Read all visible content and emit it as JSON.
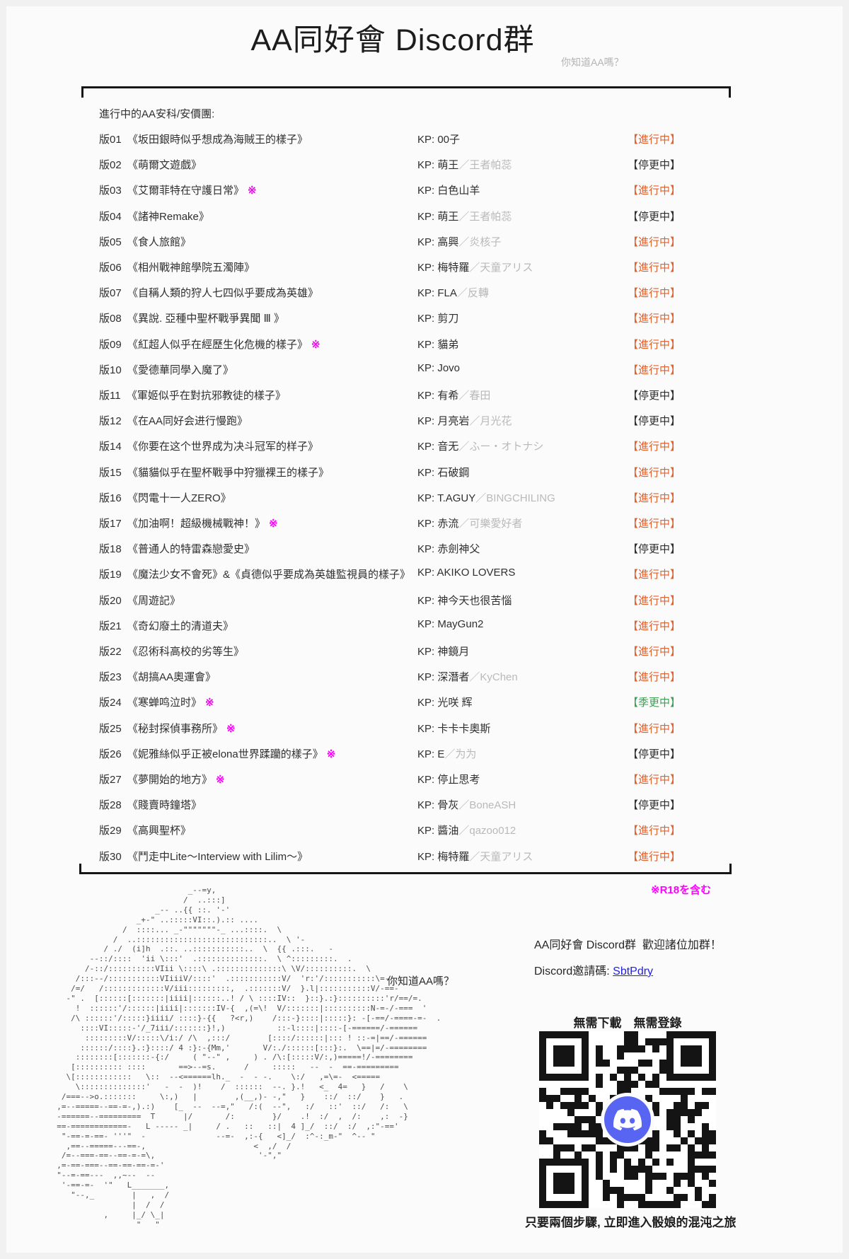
{
  "header": {
    "title": "AA同好會 Discord群",
    "subtitle": "你知道AA嗎？"
  },
  "list": {
    "heading": "進行中的AA安科/安價團:",
    "kp_prefix": "KP: ",
    "separator": "／",
    "r18_mark": "※",
    "bracket_open": "【",
    "bracket_close": "】",
    "status_colors": {
      "進行中": "#e2612c",
      "停更中": "#2e2e2e",
      "季更中": "#3ba052"
    },
    "rows": [
      {
        "no": "版01",
        "title": "《坂田銀時似乎想成為海賊王的樣子》",
        "r18": false,
        "kp": "00子",
        "kp2": "",
        "status": "進行中"
      },
      {
        "no": "版02",
        "title": "《萌爾文遊戲》",
        "r18": false,
        "kp": "萌王",
        "kp2": "王者帕蕊",
        "status": "停更中"
      },
      {
        "no": "版03",
        "title": "《艾爾菲特在守護日常》",
        "r18": true,
        "kp": "白色山羊",
        "kp2": "",
        "status": "進行中"
      },
      {
        "no": "版04",
        "title": "《諸神Remake》",
        "r18": false,
        "kp": "萌王",
        "kp2": "王者帕蕊",
        "status": "停更中"
      },
      {
        "no": "版05",
        "title": "《食人旅館》",
        "r18": false,
        "kp": "高興",
        "kp2": "炎核子",
        "status": "進行中"
      },
      {
        "no": "版06",
        "title": "《相州戰神館學院五濁陣》",
        "r18": false,
        "kp": "梅特羅",
        "kp2": "天童アリス",
        "status": "進行中"
      },
      {
        "no": "版07",
        "title": "《自稱人類的狩人七四似乎要成為英雄》",
        "r18": false,
        "kp": "FLA",
        "kp2": "反轉",
        "status": "進行中"
      },
      {
        "no": "版08",
        "title": "《異說. 亞種中聖杯戰爭異聞 Ⅲ 》",
        "r18": false,
        "kp": "剪刀",
        "kp2": "",
        "status": "進行中"
      },
      {
        "no": "版09",
        "title": "《紅超人似乎在經歷生化危機的樣子》",
        "r18": true,
        "kp": "貓弟",
        "kp2": "",
        "status": "進行中"
      },
      {
        "no": "版10",
        "title": "《愛德華同學入魔了》",
        "r18": false,
        "kp": "Jovo",
        "kp2": "",
        "status": "進行中"
      },
      {
        "no": "版11",
        "title": "《軍姬似乎在對抗邪教徒的樣子》",
        "r18": false,
        "kp": "有希",
        "kp2": "春田",
        "status": "停更中"
      },
      {
        "no": "版12",
        "title": "《在AA同好会进行慢跑》",
        "r18": false,
        "kp": "月亮岩",
        "kp2": "月光花",
        "status": "停更中"
      },
      {
        "no": "版14",
        "title": "《你要在这个世界成为决斗冠军的样子》",
        "r18": false,
        "kp": "音无",
        "kp2": "ふー・オトナシ",
        "status": "進行中"
      },
      {
        "no": "版15",
        "title": "《貓貓似乎在聖杯戰爭中狩獵裸王的樣子》",
        "r18": false,
        "kp": "石破鋼",
        "kp2": "",
        "status": "進行中"
      },
      {
        "no": "版16",
        "title": "《閃電十一人ZERO》",
        "r18": false,
        "kp": "T.AGUY",
        "kp2": "BINGCHILING",
        "status": "進行中"
      },
      {
        "no": "版17",
        "title": "《加油啊！超級機械戰神！》",
        "r18": true,
        "kp": "赤流",
        "kp2": "可樂愛好者",
        "status": "進行中"
      },
      {
        "no": "版18",
        "title": "《普通人的特雷森戀愛史》",
        "r18": false,
        "kp": "赤劍神父",
        "kp2": "",
        "status": "停更中"
      },
      {
        "no": "版19",
        "title": "《魔法少女不會死》&《貞德似乎要成為英雄監視員的樣子》",
        "r18": false,
        "kp": "AKIKO LOVERS",
        "kp2": "",
        "status": "進行中"
      },
      {
        "no": "版20",
        "title": "《周遊記》",
        "r18": false,
        "kp": "神今天也很苦惱",
        "kp2": "",
        "status": "進行中"
      },
      {
        "no": "版21",
        "title": "《奇幻廢土的清道夫》",
        "r18": false,
        "kp": "MayGun2",
        "kp2": "",
        "status": "進行中"
      },
      {
        "no": "版22",
        "title": "《忍術科高校的劣等生》",
        "r18": false,
        "kp": "神鏡月",
        "kp2": "",
        "status": "進行中"
      },
      {
        "no": "版23",
        "title": "《胡搞AA奧運會》",
        "r18": false,
        "kp": "深潛者",
        "kp2": "KyChen",
        "status": "進行中"
      },
      {
        "no": "版24",
        "title": "《寒蝉鸣泣时》",
        "r18": true,
        "kp": "光咲 辉",
        "kp2": "",
        "status": "季更中"
      },
      {
        "no": "版25",
        "title": "《秘封探偵事務所》",
        "r18": true,
        "kp": "卡卡卡奧斯",
        "kp2": "",
        "status": "進行中"
      },
      {
        "no": "版26",
        "title": "《妮雅絲似乎正被elona世界蹂躪的樣子》",
        "r18": true,
        "kp": "E",
        "kp2": "为为",
        "status": "停更中"
      },
      {
        "no": "版27",
        "title": "《夢開始的地方》",
        "r18": true,
        "kp": "停止思考",
        "kp2": "",
        "status": "進行中"
      },
      {
        "no": "版28",
        "title": "《賤賣時鐘塔》",
        "r18": false,
        "kp": "骨灰",
        "kp2": "BoneASH",
        "status": "停更中"
      },
      {
        "no": "版29",
        "title": "《高興聖杯》",
        "r18": false,
        "kp": "醬油",
        "kp2": "qazoo012",
        "status": "進行中"
      },
      {
        "no": "版30",
        "title": "《鬥走中Lite～Interview with Lilim～》",
        "r18": false,
        "kp": "梅特羅",
        "kp2": "天童アリス",
        "status": "進行中"
      }
    ]
  },
  "footer": {
    "r18_note": "※R18を含む",
    "aa_caption": "你知道AA嗎？",
    "promo": "AA同好會 Discord群  歡迎諸位加群！",
    "invite_label": "Discord邀請碼: ",
    "invite_code": "SbtPdry",
    "qr_caption_top": "無需下載　無需登錄",
    "qr_caption_bottom": "只要兩個步驟, 立即進入骰娘的混沌之旅",
    "discord_color": "#5865F2"
  },
  "ascii_art": {
    "lines": [
      "                                      _--=y,",
      "                                     /  ..:::]",
      "                               _-- ..{{ ::. '-'",
      "                           _+-\" ..:::::VI::.).:: ....",
      "                        /  ::::... _-\"\"\"\"\"\"\"-_ ...::::.  \\",
      "                      /  ..::::::::::::::::::::::::::::..  \\ '-",
      "                    / ./  (i]h  .::. ..:::::::::::..  \\  {{ .:::.   -",
      "                 --::/::::  'ii \\:::'  .::::::::::::::.  \\ ^:::::::::.  .",
      "                /-::/::::::::::VIii \\::::\\ .::::::::::::::\\ \\V/::::::::::.  \\",
      "              /:::--/:::::::::::VIiiiV/::::'  .:::::::::::V/  'r:'/:::::::::::\\=-",
      "             /=/   /:::::::::::::V/iii:::::::::,  .:::::::V/  }.l|:::::::::::V/-==-",
      "            -\" .  [::::::[:::::::|iiii|::::::..! / \\ ::::IV::  }::}.:}::::::::::'r/==/=.",
      "              !  ::::::'/::::::|iiii|:::::::IV-{  ,(=\\!  V/:::::::|::::::::::N-=-/-===  '",
      "             /\\ ::::::'/:::::}iiii/ ::::}-{{   ?<r,)    /:::-}::::|:::::}: -[-==/-====-=-  .",
      "               ::::VI:::::-'/_7iii/:::::::}!,)           ::-l::::|::::-[-======/-======",
      "                :::::::::V/:::::\\/i:/ /\\  ,:::/        [::::/::::::|::: ! ::-=|==/-======",
      "               ::::::/::::}.:}::::/ 4 :}:-{Mm,'       V/:./::::::[:::}:.  \\==|=/-========",
      "              ::::::::[:::::::-{:/     ( \"--\" ,     ) . /\\:[:::::V/:,)=====!/-========",
      "             [:::::::::: ::::       ==>--=s.      /     :::::   --  -  ==-=========",
      "            \\[::::::::::::   \\::  --<======lh._  -  - -.    \\:/   ,=\\=-  <=====",
      "              \\::::::::::::::'   -  -  )!    /  ::::::  --. }.!   <_  4=   }   /    \\",
      "           /===-->o.:::::::     \\:,)   |        ,(__,)- -,\"   }    ::/  ::/    }   .",
      "          ,=--=====--==-=-,).:)    [_  --  --=,\"   /:(  --\",   :/   ::'  ::/   /:   \\",
      "          -======--=========  T      |/       /:        }/    .!  :/  ,  /:    ,:  -}",
      "          ==-============-   L ----- _|     / .   ::   ::|  4 ]_/  ::/  :/  ,:\"-=='",
      "           \"-==-=-==- '''\"  -               --=-  ,:-{   <]_/  :^-:_m-\"  ^-- \"",
      "            ,==--=====---==-,                       <  ,/  /",
      "           /=--===-==--==-=-=\\,                      '-\",\"",
      "          ,=-==-===--==-==-==-=-'",
      "          \"--=-==---  ,,~--  --",
      "           '-==-=-  '\"   L_______,",
      "             \"--,_        |   ,  /",
      "                          |  /  /",
      "                    ,     |_/ \\_|",
      "                           \"   \"",
      "",
      ""
    ]
  }
}
